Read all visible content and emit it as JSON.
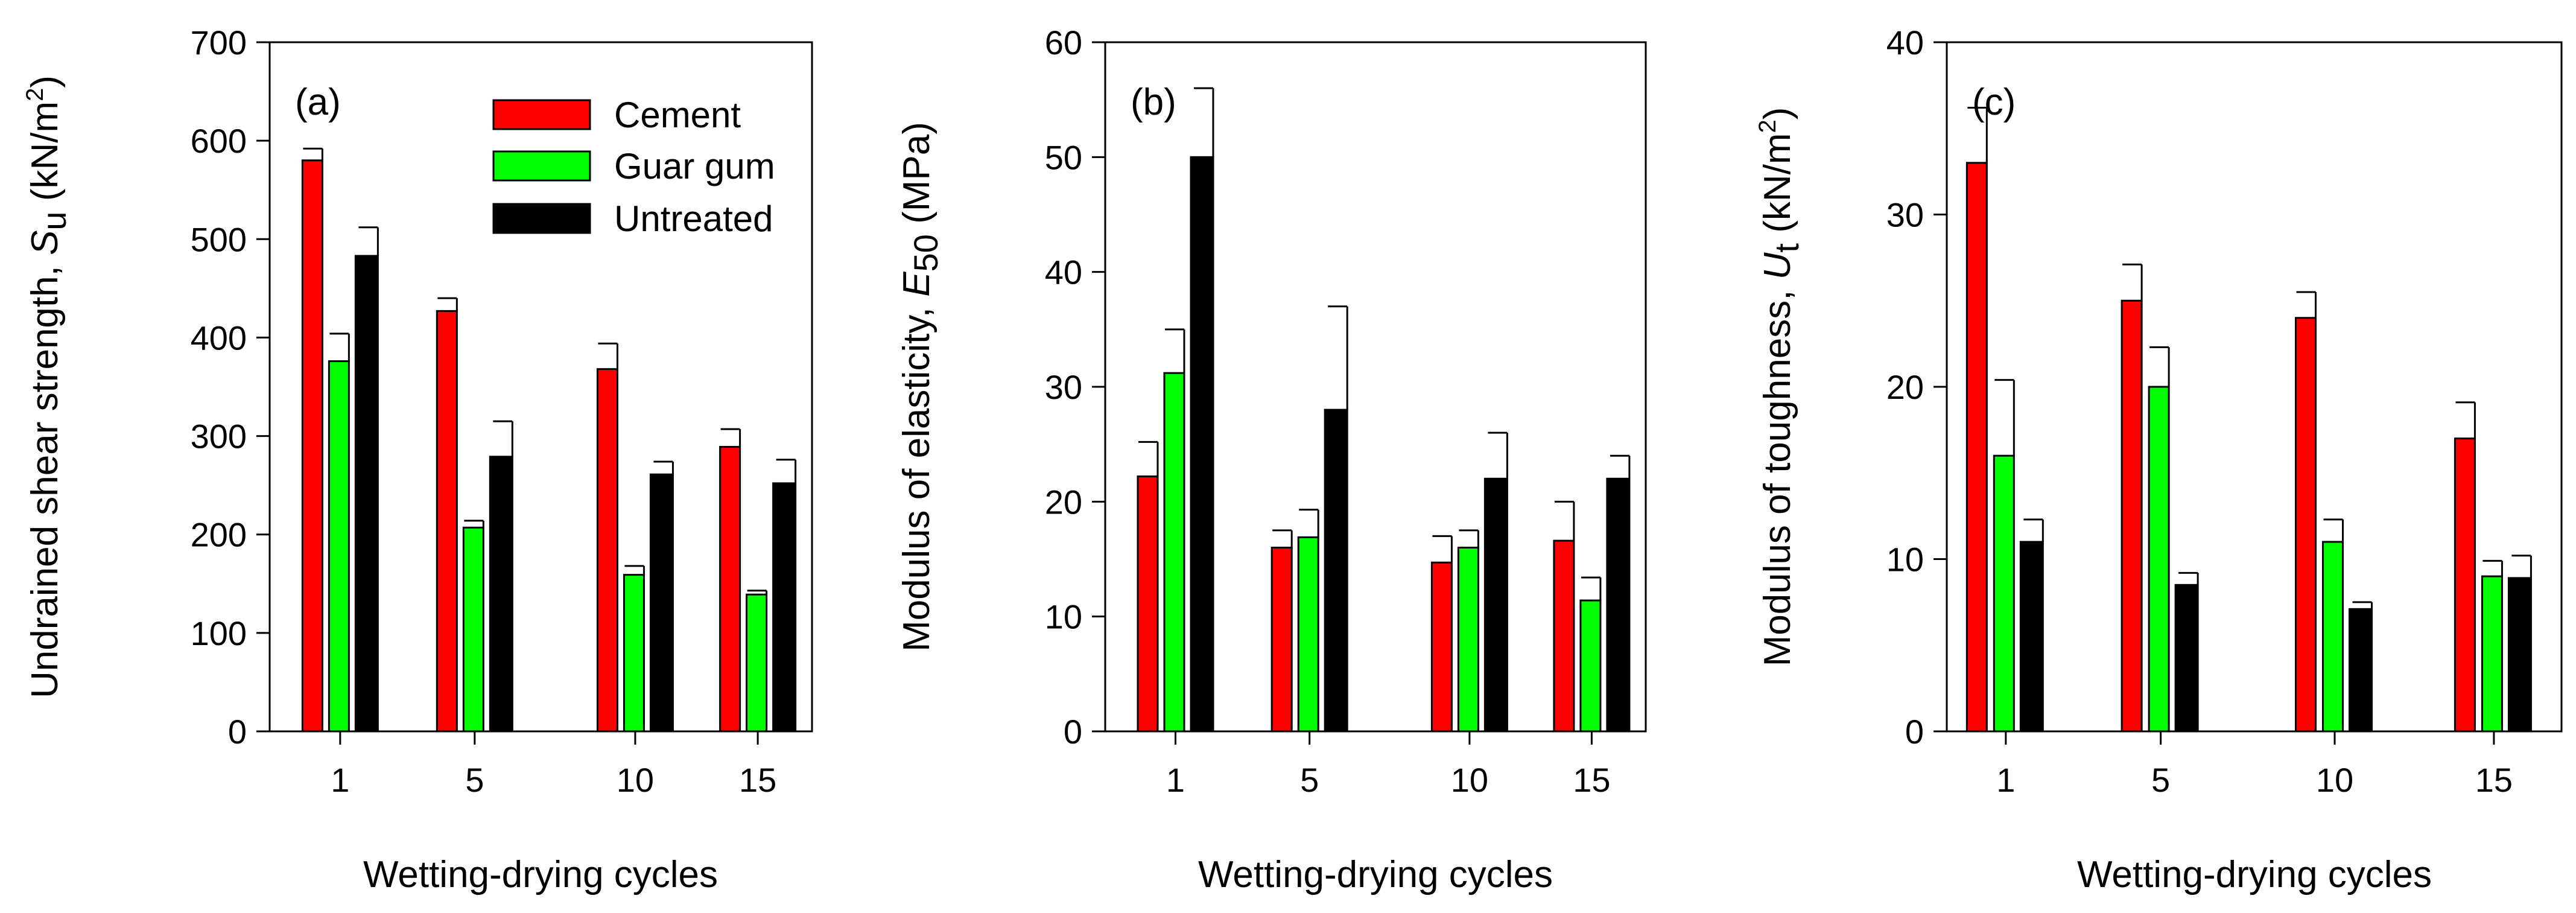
{
  "chart_data": [
    {
      "type": "bar",
      "panel_label": "(a)",
      "categories": [
        "1",
        "5",
        "10",
        "15"
      ],
      "series": [
        {
          "name": "Cement",
          "color": "#ff0000",
          "values": [
            580,
            427,
            368,
            289
          ],
          "errors": [
            12,
            13,
            26,
            18
          ]
        },
        {
          "name": "Guar gum",
          "color": "#00ff00",
          "values": [
            376,
            207,
            159,
            139
          ],
          "errors": [
            28,
            7,
            9,
            4
          ]
        },
        {
          "name": "Untreated",
          "color": "#000000",
          "values": [
            483,
            279,
            261,
            252
          ],
          "errors": [
            29,
            36,
            13,
            24
          ]
        }
      ],
      "ylabel": {
        "main": "Undrained shear strength, ",
        "sym": "S",
        "sub": "u",
        "unit_pre": " (kN/m",
        "sup": "2",
        "unit_post": ")"
      },
      "xlabel": "Wetting-drying cycles",
      "ylim": [
        0,
        700
      ],
      "yticks": [
        "0",
        "100",
        "200",
        "300",
        "400",
        "500",
        "600",
        "700"
      ],
      "ytick_values": [
        0,
        100,
        200,
        300,
        400,
        500,
        600,
        700
      ],
      "show_legend": true
    },
    {
      "type": "bar",
      "panel_label": "(b)",
      "categories": [
        "1",
        "5",
        "10",
        "15"
      ],
      "series": [
        {
          "name": "Cement",
          "color": "#ff0000",
          "values": [
            22.2,
            16,
            14.7,
            16.6
          ],
          "errors": [
            3,
            1.5,
            2.3,
            3.4
          ]
        },
        {
          "name": "Guar gum",
          "color": "#00ff00",
          "values": [
            31.2,
            16.9,
            16,
            11.4
          ],
          "errors": [
            3.8,
            2.4,
            1.5,
            2
          ]
        },
        {
          "name": "Untreated",
          "color": "#000000",
          "values": [
            50,
            28,
            22,
            22
          ],
          "errors": [
            6,
            9,
            4,
            2
          ]
        }
      ],
      "ylabel": {
        "main": "Modulus of elasticity, ",
        "sym": "E",
        "sub": "50",
        "unit_pre": " (MPa)",
        "sup": "",
        "unit_post": ""
      },
      "xlabel": "Wetting-drying cycles",
      "ylim": [
        0,
        60
      ],
      "yticks": [
        "0",
        "10",
        "20",
        "30",
        "40",
        "50",
        "60"
      ],
      "ytick_values": [
        0,
        10,
        20,
        30,
        40,
        50,
        60
      ],
      "show_legend": false
    },
    {
      "type": "bar",
      "panel_label": "(c)",
      "categories": [
        "1",
        "5",
        "10",
        "15"
      ],
      "series": [
        {
          "name": "Cement",
          "color": "#ff0000",
          "values": [
            33,
            25,
            24,
            17
          ],
          "errors": [
            3.2,
            2.1,
            1.5,
            2.1
          ]
        },
        {
          "name": "Guar gum",
          "color": "#00ff00",
          "values": [
            16,
            20,
            11,
            9
          ],
          "errors": [
            4.4,
            2.3,
            1.3,
            0.9
          ]
        },
        {
          "name": "Untreated",
          "color": "#000000",
          "values": [
            11,
            8.5,
            7.1,
            8.9
          ],
          "errors": [
            1.3,
            0.7,
            0.4,
            1.3
          ]
        }
      ],
      "ylabel": {
        "main": "Modulus of toughness, ",
        "sym": "U",
        "sub": "t",
        "unit_pre": " (kN/m",
        "sup": "2",
        "unit_post": ")"
      },
      "xlabel": "Wetting-drying cycles",
      "ylim": [
        0,
        40
      ],
      "yticks": [
        "0",
        "10",
        "20",
        "30",
        "40"
      ],
      "ytick_values": [
        0,
        10,
        20,
        30,
        40
      ],
      "show_legend": false
    }
  ]
}
